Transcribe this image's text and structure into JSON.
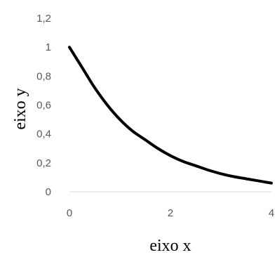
{
  "chart_data": {
    "type": "line",
    "xlabel": "eixo x",
    "ylabel": "eixo y",
    "xlim": [
      0,
      4
    ],
    "ylim": [
      0,
      1.2
    ],
    "x_ticks": [
      0,
      2,
      4
    ],
    "x_tick_labels": [
      "0",
      "2",
      "4"
    ],
    "y_ticks": [
      0,
      0.2,
      0.4,
      0.6,
      0.8,
      1,
      1.2
    ],
    "y_tick_labels": [
      "0",
      "0,2",
      "0,4",
      "0,6",
      "0,8",
      "1",
      "1,2"
    ],
    "grid": false,
    "legend": false,
    "series": [
      {
        "color": "#000000",
        "x": [
          0,
          0.25,
          0.5,
          0.75,
          1,
          1.25,
          1.5,
          1.75,
          2,
          2.25,
          2.5,
          2.75,
          3,
          3.25,
          3.5,
          3.75,
          4
        ],
        "y": [
          1,
          0.86,
          0.72,
          0.6,
          0.5,
          0.42,
          0.36,
          0.3,
          0.25,
          0.21,
          0.18,
          0.15,
          0.125,
          0.105,
          0.09,
          0.075,
          0.06
        ]
      }
    ]
  }
}
